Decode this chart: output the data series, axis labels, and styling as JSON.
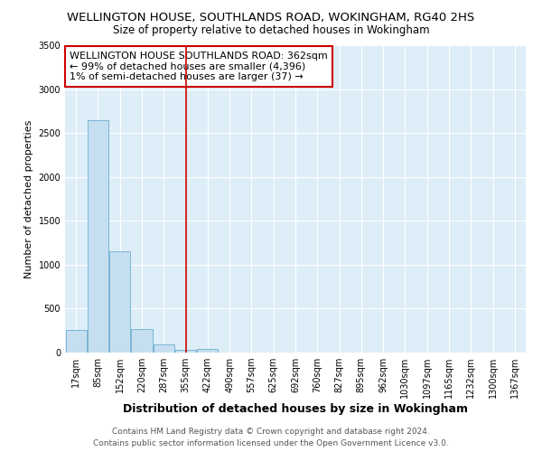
{
  "title": "WELLINGTON HOUSE, SOUTHLANDS ROAD, WOKINGHAM, RG40 2HS",
  "subtitle": "Size of property relative to detached houses in Wokingham",
  "xlabel": "Distribution of detached houses by size in Wokingham",
  "ylabel": "Number of detached properties",
  "categories": [
    "17sqm",
    "85sqm",
    "152sqm",
    "220sqm",
    "287sqm",
    "355sqm",
    "422sqm",
    "490sqm",
    "557sqm",
    "625sqm",
    "692sqm",
    "760sqm",
    "827sqm",
    "895sqm",
    "962sqm",
    "1030sqm",
    "1097sqm",
    "1165sqm",
    "1232sqm",
    "1300sqm",
    "1367sqm"
  ],
  "values": [
    260,
    2650,
    1150,
    270,
    90,
    30,
    40,
    0,
    0,
    0,
    0,
    0,
    0,
    0,
    0,
    0,
    0,
    0,
    0,
    0,
    0
  ],
  "bar_color": "#c6dff0",
  "bar_edgecolor": "#7ab4d4",
  "vline_x": 5.0,
  "vline_color": "#cc0000",
  "annotation_text": "WELLINGTON HOUSE SOUTHLANDS ROAD: 362sqm\n← 99% of detached houses are smaller (4,396)\n1% of semi-detached houses are larger (37) →",
  "annotation_box_facecolor": "#ffffff",
  "annotation_box_edgecolor": "#cc0000",
  "ylim": [
    0,
    3500
  ],
  "yticks": [
    0,
    500,
    1000,
    1500,
    2000,
    2500,
    3000,
    3500
  ],
  "footer_line1": "Contains HM Land Registry data © Crown copyright and database right 2024.",
  "footer_line2": "Contains public sector information licensed under the Open Government Licence v3.0.",
  "fig_bg_color": "#ffffff",
  "plot_bg_color": "#ddeef8",
  "grid_color": "#ffffff",
  "title_fontsize": 9.5,
  "subtitle_fontsize": 8.5,
  "ylabel_fontsize": 8,
  "xlabel_fontsize": 9,
  "tick_fontsize": 7,
  "annotation_fontsize": 8,
  "footer_fontsize": 6.5
}
